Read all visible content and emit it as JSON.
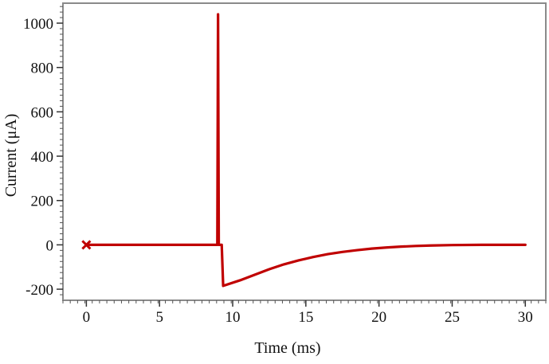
{
  "chart_data": {
    "type": "line",
    "xlabel": "Time (ms)",
    "ylabel": "Current (μA)",
    "xlim": [
      -1.6,
      31.4
    ],
    "ylim": [
      -250,
      1090
    ],
    "x_ticks": [
      0,
      5,
      10,
      15,
      20,
      25,
      30
    ],
    "y_ticks": [
      -200,
      0,
      200,
      400,
      600,
      800,
      1000
    ],
    "x_tick_labels": [
      "0",
      "5",
      "10",
      "15",
      "20",
      "25",
      "30"
    ],
    "y_tick_labels": [
      "-200",
      "0",
      "200",
      "400",
      "600",
      "800",
      "1000"
    ],
    "grid": false,
    "line_color": "#c00000",
    "series": [
      {
        "marker_start": {
          "x": 0,
          "y": 0
        },
        "points": [
          {
            "x": 0,
            "y": 0
          },
          {
            "x": 8.95,
            "y": 0
          },
          {
            "x": 9.0,
            "y": 1040
          },
          {
            "x": 9.05,
            "y": 0
          },
          {
            "x": 9.1,
            "y": 0
          },
          {
            "x": 9.25,
            "y": 0
          },
          {
            "x": 9.35,
            "y": -185
          },
          {
            "x": 10.5,
            "y": -160
          },
          {
            "x": 11.5,
            "y": -135
          },
          {
            "x": 12.5,
            "y": -110
          },
          {
            "x": 13.5,
            "y": -88
          },
          {
            "x": 14.5,
            "y": -70
          },
          {
            "x": 15.5,
            "y": -55
          },
          {
            "x": 16.5,
            "y": -42
          },
          {
            "x": 17.5,
            "y": -32
          },
          {
            "x": 18.5,
            "y": -24
          },
          {
            "x": 19.5,
            "y": -17
          },
          {
            "x": 20.5,
            "y": -12
          },
          {
            "x": 21.5,
            "y": -8
          },
          {
            "x": 22.5,
            "y": -5
          },
          {
            "x": 23.5,
            "y": -3
          },
          {
            "x": 25,
            "y": -1
          },
          {
            "x": 27,
            "y": 0
          },
          {
            "x": 30,
            "y": 0
          }
        ]
      }
    ]
  }
}
